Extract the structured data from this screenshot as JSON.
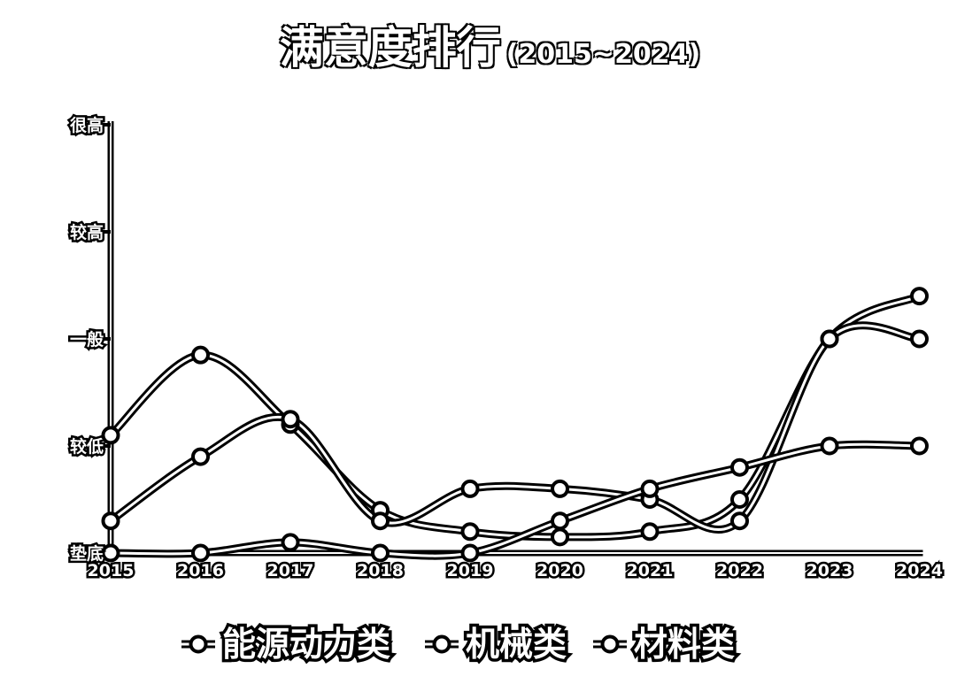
{
  "chart_data": {
    "type": "line",
    "title": "满意度排行",
    "subtitle": "(2015~2024)",
    "xlabel": "",
    "ylabel": "",
    "categories": [
      "2015",
      "2016",
      "2017",
      "2018",
      "2019",
      "2020",
      "2021",
      "2022",
      "2023",
      "2024"
    ],
    "y_levels": [
      "垫底",
      "较低",
      "一般",
      "较高",
      "很高"
    ],
    "ylim": [
      0,
      4
    ],
    "grid": false,
    "legend_position": "bottom",
    "series": [
      {
        "name": "能源动力类",
        "values": [
          1.1,
          1.85,
          1.2,
          0.4,
          0.2,
          0.15,
          0.2,
          0.5,
          2.0,
          2.4
        ]
      },
      {
        "name": "机械类",
        "values": [
          0.3,
          0.9,
          1.25,
          0.3,
          0.6,
          0.6,
          0.5,
          0.3,
          2.0,
          2.0
        ]
      },
      {
        "name": "材料类",
        "values": [
          0.0,
          0.0,
          0.1,
          0.0,
          0.0,
          0.3,
          0.6,
          0.8,
          1.0,
          1.0
        ]
      }
    ]
  }
}
